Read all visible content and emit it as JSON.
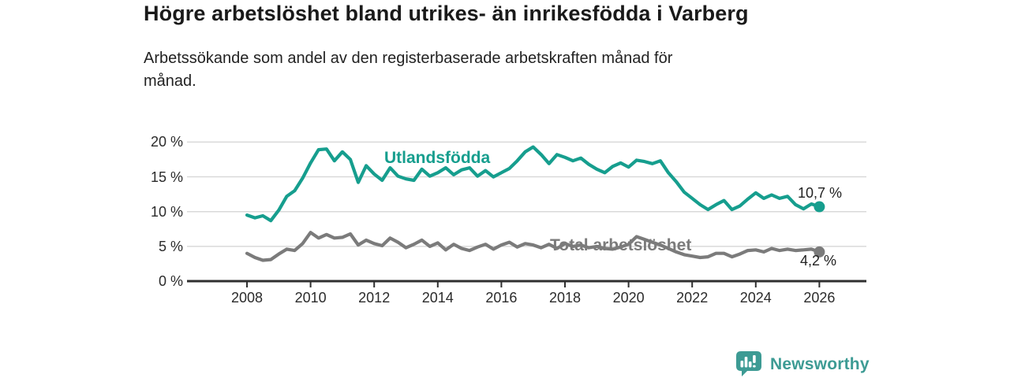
{
  "header": {
    "title": "Högre arbetslöshet bland utrikes- än inrikesfödda i Varberg",
    "subtitle": "Arbetssökande som andel av den registerbaserade arbetskraften månad för månad."
  },
  "chart_data": {
    "type": "line",
    "unit": "%",
    "x_start": 2008.0,
    "x_step": 0.25,
    "x_end": 2026.0,
    "grid": "horizontal",
    "legend": "inline-labels",
    "y_axis": {
      "range": [
        0,
        20
      ],
      "ticks": [
        0,
        5,
        10,
        15,
        20
      ],
      "tick_labels": [
        "0 %",
        "5 %",
        "10 %",
        "15 %",
        "20 %"
      ]
    },
    "x_axis": {
      "ticks": [
        2008,
        2010,
        2012,
        2014,
        2016,
        2018,
        2020,
        2022,
        2024,
        2026
      ],
      "tick_labels": [
        "2008",
        "2010",
        "2012",
        "2014",
        "2016",
        "2018",
        "2020",
        "2022",
        "2024",
        "2026"
      ]
    },
    "series": [
      {
        "name": "Utlandsfödda",
        "color": "#169e8e",
        "end_label": "10,7 %",
        "end_value": 10.7,
        "values": [
          9.5,
          9.1,
          9.4,
          8.7,
          10.2,
          12.2,
          13.0,
          14.8,
          17.0,
          18.9,
          19.0,
          17.3,
          18.6,
          17.5,
          14.2,
          16.6,
          15.4,
          14.5,
          16.3,
          15.1,
          14.7,
          14.5,
          16.1,
          15.1,
          15.6,
          16.3,
          15.3,
          16.0,
          16.3,
          15.1,
          15.9,
          15.0,
          15.6,
          16.2,
          17.3,
          18.6,
          19.3,
          18.2,
          16.9,
          18.2,
          17.8,
          17.3,
          17.7,
          16.8,
          16.1,
          15.6,
          16.5,
          17.0,
          16.4,
          17.4,
          17.2,
          16.9,
          17.3,
          15.6,
          14.3,
          12.8,
          11.9,
          11.0,
          10.3,
          11.0,
          11.6,
          10.3,
          10.8,
          11.8,
          12.7,
          11.9,
          12.4,
          11.9,
          12.2,
          11.0,
          10.4,
          11.1,
          10.7
        ]
      },
      {
        "name": "Total arbetslöshet",
        "color": "#7b7b7b",
        "end_label": "4,2 %",
        "end_value": 4.2,
        "values": [
          4.0,
          3.4,
          3.0,
          3.1,
          3.9,
          4.6,
          4.4,
          5.4,
          7.0,
          6.2,
          6.7,
          6.2,
          6.3,
          6.8,
          5.2,
          5.9,
          5.4,
          5.1,
          6.2,
          5.6,
          4.8,
          5.3,
          5.9,
          5.0,
          5.5,
          4.5,
          5.3,
          4.7,
          4.4,
          4.9,
          5.3,
          4.6,
          5.2,
          5.6,
          4.9,
          5.4,
          5.2,
          4.8,
          5.3,
          4.7,
          5.4,
          5.0,
          5.2,
          4.8,
          5.0,
          4.7,
          4.6,
          4.9,
          5.3,
          6.4,
          6.0,
          5.6,
          5.2,
          4.7,
          4.2,
          3.8,
          3.6,
          3.4,
          3.5,
          4.0,
          4.0,
          3.5,
          3.9,
          4.4,
          4.5,
          4.2,
          4.7,
          4.4,
          4.6,
          4.4,
          4.5,
          4.6,
          4.2
        ]
      }
    ]
  },
  "footer": {
    "brand": "Newsworthy",
    "brand_color": "#3d9b94",
    "logo_icon": "bar-chart-speech-bubble"
  }
}
